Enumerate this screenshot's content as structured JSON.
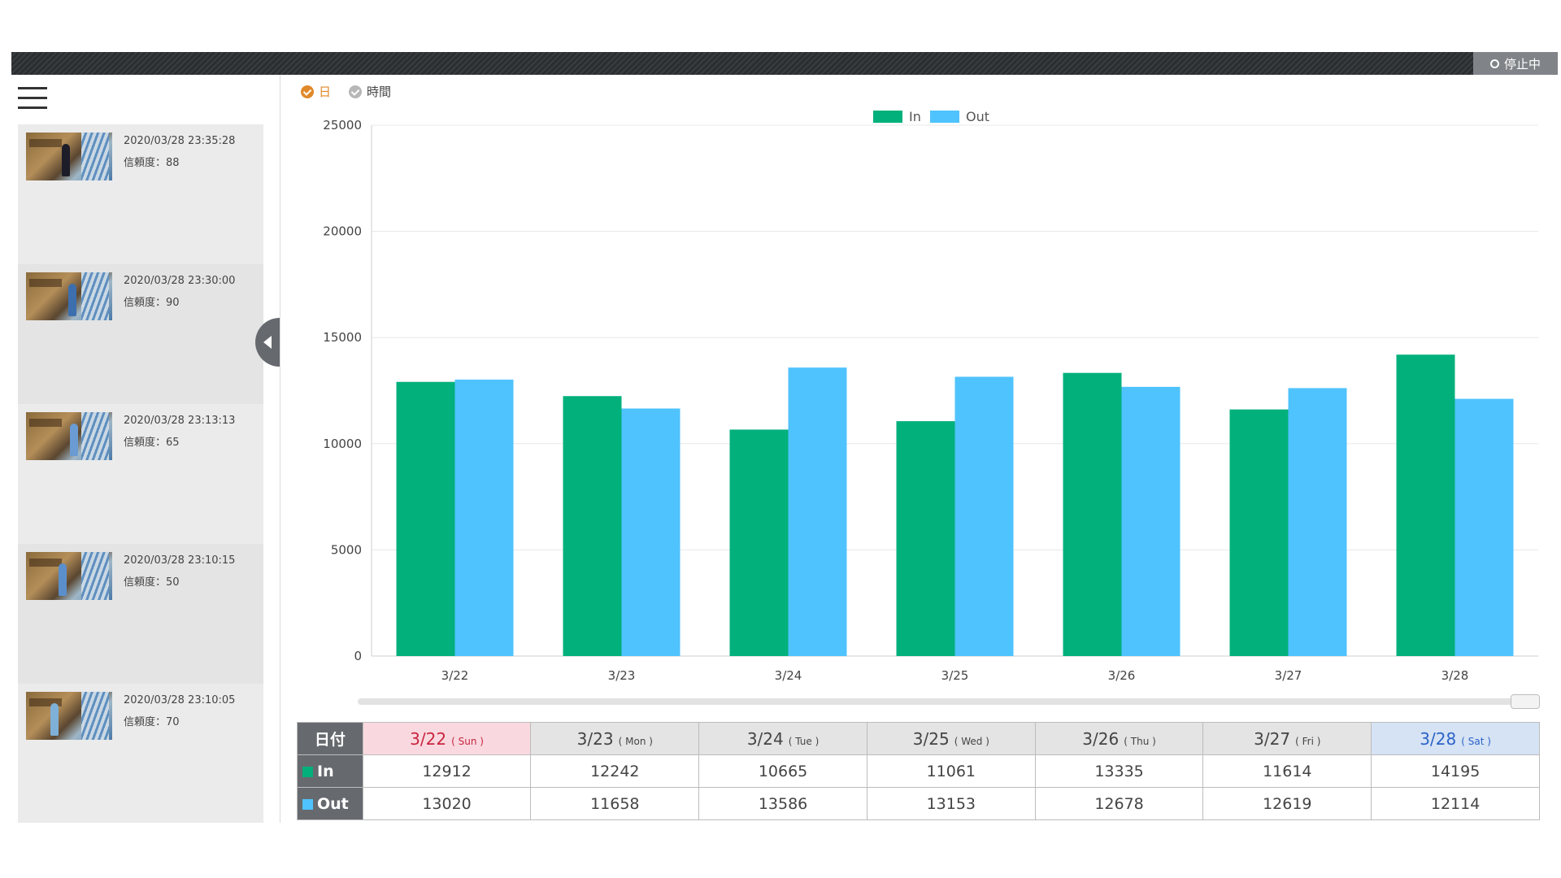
{
  "header": {
    "status_label": "停止中"
  },
  "feed": [
    {
      "timestamp": "2020/03/28 23:35:28",
      "confidence": "信頼度：88"
    },
    {
      "timestamp": "2020/03/28 23:30:00",
      "confidence": "信頼度：90"
    },
    {
      "timestamp": "2020/03/28 23:13:13",
      "confidence": "信頼度：65"
    },
    {
      "timestamp": "2020/03/28 23:10:15",
      "confidence": "信頼度：50"
    },
    {
      "timestamp": "2020/03/28 23:10:05",
      "confidence": "信頼度：70"
    }
  ],
  "mode": {
    "day_label": "日",
    "hour_label": "時間",
    "selected": "day"
  },
  "colors": {
    "in": "#02b07b",
    "out": "#4fc3fe"
  },
  "chart_data": {
    "type": "bar",
    "categories": [
      "3/22",
      "3/23",
      "3/24",
      "3/25",
      "3/26",
      "3/27",
      "3/28"
    ],
    "series": [
      {
        "name": "In",
        "values": [
          12912,
          12242,
          10665,
          11061,
          13335,
          11614,
          14195
        ]
      },
      {
        "name": "Out",
        "values": [
          13020,
          11658,
          13586,
          13153,
          12678,
          12619,
          12114
        ]
      }
    ],
    "title": "",
    "xlabel": "",
    "ylabel": "",
    "ylim": [
      0,
      25000
    ],
    "yticks": [
      "0",
      "5000",
      "10000",
      "15000",
      "20000",
      "25000"
    ],
    "grid": true,
    "legend": "top-center"
  },
  "table": {
    "corner_label": "日付",
    "row_in_label": "In",
    "row_out_label": "Out",
    "dates": [
      {
        "date": "3/22",
        "dow": "( Sun )"
      },
      {
        "date": "3/23",
        "dow": "( Mon )"
      },
      {
        "date": "3/24",
        "dow": "( Tue )"
      },
      {
        "date": "3/25",
        "dow": "( Wed )"
      },
      {
        "date": "3/26",
        "dow": "( Thu )"
      },
      {
        "date": "3/27",
        "dow": "( Fri )"
      },
      {
        "date": "3/28",
        "dow": "( Sat )"
      }
    ],
    "in": [
      "12912",
      "12242",
      "10665",
      "11061",
      "13335",
      "11614",
      "14195"
    ],
    "out": [
      "13020",
      "11658",
      "13586",
      "13153",
      "12678",
      "12619",
      "12114"
    ]
  }
}
